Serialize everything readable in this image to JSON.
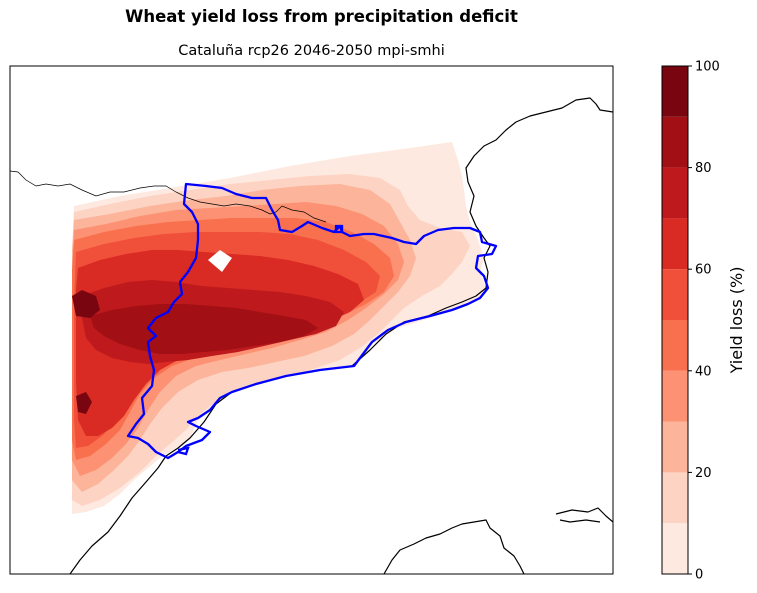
{
  "chart_data": {
    "type": "heatmap",
    "title": "Wheat yield loss from precipitation deficit",
    "subtitle": "Cataluña rcp26 2046-2050 mpi-smhi",
    "colorbar": {
      "label": "Yield loss (%)",
      "range": [
        0,
        100
      ],
      "levels": [
        0,
        10,
        20,
        30,
        40,
        50,
        60,
        70,
        80,
        90,
        100
      ],
      "ticks": [
        "0",
        "20",
        "40",
        "60",
        "80",
        "100"
      ],
      "colors": [
        "#fee9e1",
        "#fdd3c3",
        "#fcb49a",
        "#fc9273",
        "#f9704f",
        "#f0503a",
        "#d92a24",
        "#be1a1d",
        "#a20f15",
        "#790510"
      ]
    },
    "overlays": {
      "region_outline_color": "#0000ff",
      "coastline_color": "#000000"
    }
  }
}
